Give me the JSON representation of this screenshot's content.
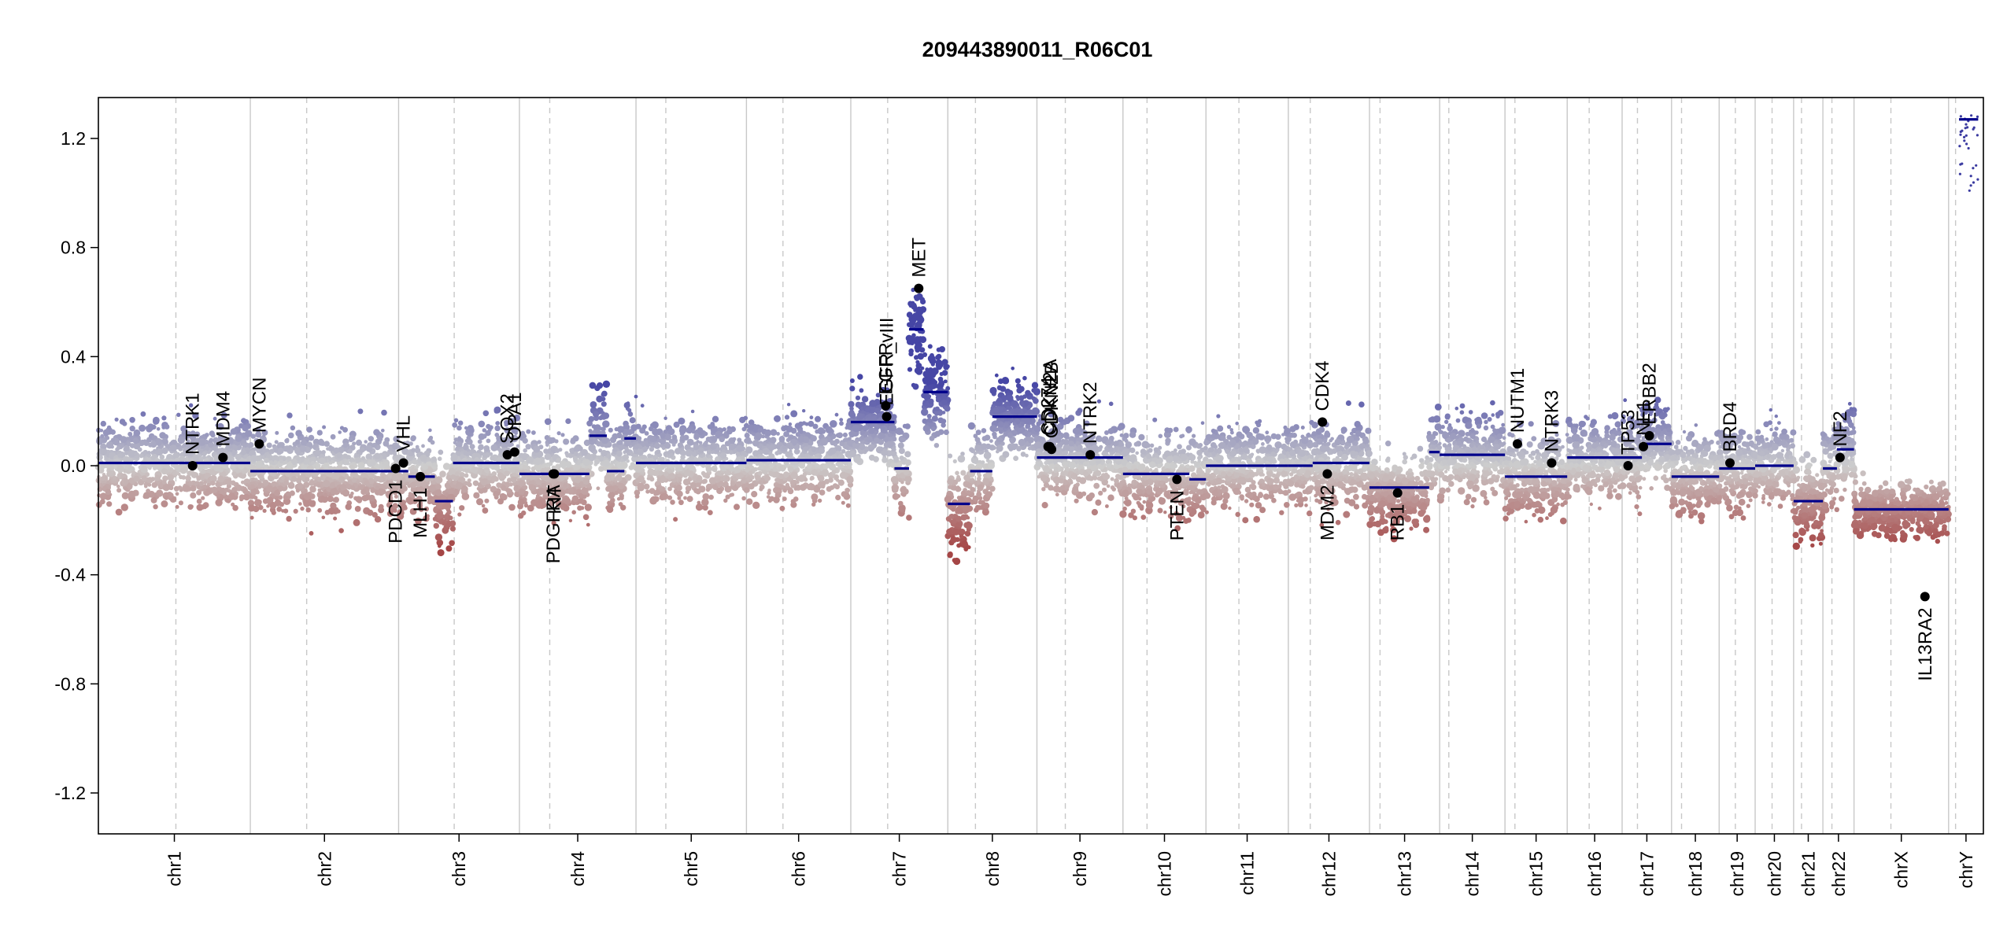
{
  "chart_data": {
    "type": "scatter",
    "title": "209443890011_R06C01",
    "xlabel": "",
    "ylabel": "",
    "ylim": [
      -1.35,
      1.35
    ],
    "yticks": [
      -1.2,
      -0.8,
      -0.4,
      0.0,
      0.4,
      0.8,
      1.2
    ],
    "ytick_labels": [
      "-1.2",
      "-0.8",
      "-0.4",
      "0.0",
      "0.4",
      "0.8",
      "1.2"
    ],
    "grid": false,
    "legend": "none",
    "colors": {
      "gain": "#3a3aa0",
      "loss": "#a03a3a",
      "neutral": "#bdbdbd",
      "segment": "#00008b",
      "gene": "#000000"
    },
    "chromosomes": [
      {
        "name": "chr1",
        "size": 249
      },
      {
        "name": "chr2",
        "size": 243
      },
      {
        "name": "chr3",
        "size": 198
      },
      {
        "name": "chr4",
        "size": 191
      },
      {
        "name": "chr5",
        "size": 181
      },
      {
        "name": "chr6",
        "size": 171
      },
      {
        "name": "chr7",
        "size": 159
      },
      {
        "name": "chr8",
        "size": 146
      },
      {
        "name": "chr9",
        "size": 141
      },
      {
        "name": "chr10",
        "size": 136
      },
      {
        "name": "chr11",
        "size": 135
      },
      {
        "name": "chr12",
        "size": 133
      },
      {
        "name": "chr13",
        "size": 115
      },
      {
        "name": "chr14",
        "size": 107
      },
      {
        "name": "chr15",
        "size": 102
      },
      {
        "name": "chr16",
        "size": 90
      },
      {
        "name": "chr17",
        "size": 81
      },
      {
        "name": "chr18",
        "size": 78
      },
      {
        "name": "chr19",
        "size": 59
      },
      {
        "name": "chr20",
        "size": 63
      },
      {
        "name": "chr21",
        "size": 48
      },
      {
        "name": "chr22",
        "size": 51
      },
      {
        "name": "chrX",
        "size": 155
      },
      {
        "name": "chrY",
        "size": 57
      }
    ],
    "centromeres": [
      0.51,
      0.38,
      0.46,
      0.26,
      0.27,
      0.35,
      0.38,
      0.31,
      0.33,
      0.29,
      0.4,
      0.27,
      0.15,
      0.14,
      0.16,
      0.4,
      0.31,
      0.21,
      0.45,
      0.44,
      0.27,
      0.29,
      0.39,
      0.2
    ],
    "segments": [
      {
        "chr": 0,
        "start": 0.0,
        "end": 1.0,
        "value": 0.01
      },
      {
        "chr": 1,
        "start": 0.0,
        "end": 1.0,
        "value": -0.02
      },
      {
        "chr": 2,
        "start": 0.0,
        "end": 0.08,
        "value": -0.02
      },
      {
        "chr": 2,
        "start": 0.08,
        "end": 0.3,
        "value": -0.04
      },
      {
        "chr": 2,
        "start": 0.3,
        "end": 0.45,
        "value": -0.13
      },
      {
        "chr": 2,
        "start": 0.45,
        "end": 1.0,
        "value": 0.01
      },
      {
        "chr": 3,
        "start": 0.0,
        "end": 0.6,
        "value": -0.03
      },
      {
        "chr": 3,
        "start": 0.6,
        "end": 0.75,
        "value": 0.11
      },
      {
        "chr": 3,
        "start": 0.75,
        "end": 0.9,
        "value": -0.02
      },
      {
        "chr": 3,
        "start": 0.9,
        "end": 1.0,
        "value": 0.1
      },
      {
        "chr": 4,
        "start": 0.0,
        "end": 1.0,
        "value": 0.01
      },
      {
        "chr": 5,
        "start": 0.0,
        "end": 1.0,
        "value": 0.02
      },
      {
        "chr": 6,
        "start": 0.0,
        "end": 0.45,
        "value": 0.16
      },
      {
        "chr": 6,
        "start": 0.45,
        "end": 0.6,
        "value": -0.01
      },
      {
        "chr": 6,
        "start": 0.6,
        "end": 0.75,
        "value": 0.5
      },
      {
        "chr": 6,
        "start": 0.75,
        "end": 1.0,
        "value": 0.27
      },
      {
        "chr": 7,
        "start": 0.0,
        "end": 0.25,
        "value": -0.14
      },
      {
        "chr": 7,
        "start": 0.25,
        "end": 0.5,
        "value": -0.02
      },
      {
        "chr": 7,
        "start": 0.5,
        "end": 1.0,
        "value": 0.18
      },
      {
        "chr": 8,
        "start": 0.0,
        "end": 1.0,
        "value": 0.03
      },
      {
        "chr": 9,
        "start": 0.0,
        "end": 0.8,
        "value": -0.03
      },
      {
        "chr": 9,
        "start": 0.8,
        "end": 1.0,
        "value": -0.05
      },
      {
        "chr": 10,
        "start": 0.0,
        "end": 1.0,
        "value": 0.0
      },
      {
        "chr": 11,
        "start": 0.0,
        "end": 0.3,
        "value": 0.0
      },
      {
        "chr": 11,
        "start": 0.3,
        "end": 1.0,
        "value": 0.01
      },
      {
        "chr": 12,
        "start": 0.0,
        "end": 0.15,
        "value": -0.08
      },
      {
        "chr": 12,
        "start": 0.15,
        "end": 0.85,
        "value": -0.08
      },
      {
        "chr": 12,
        "start": 0.85,
        "end": 1.0,
        "value": 0.05
      },
      {
        "chr": 13,
        "start": 0.0,
        "end": 1.0,
        "value": 0.04
      },
      {
        "chr": 14,
        "start": 0.0,
        "end": 1.0,
        "value": -0.04
      },
      {
        "chr": 15,
        "start": 0.0,
        "end": 1.0,
        "value": 0.03
      },
      {
        "chr": 16,
        "start": 0.0,
        "end": 0.4,
        "value": 0.03
      },
      {
        "chr": 16,
        "start": 0.4,
        "end": 1.0,
        "value": 0.08
      },
      {
        "chr": 17,
        "start": 0.0,
        "end": 1.0,
        "value": -0.04
      },
      {
        "chr": 18,
        "start": 0.0,
        "end": 1.0,
        "value": -0.01
      },
      {
        "chr": 19,
        "start": 0.0,
        "end": 1.0,
        "value": 0.0
      },
      {
        "chr": 20,
        "start": 0.0,
        "end": 1.0,
        "value": -0.13
      },
      {
        "chr": 21,
        "start": 0.0,
        "end": 0.45,
        "value": -0.01
      },
      {
        "chr": 21,
        "start": 0.45,
        "end": 1.0,
        "value": 0.06
      },
      {
        "chr": 22,
        "start": 0.0,
        "end": 1.0,
        "value": -0.16
      },
      {
        "chr": 23,
        "start": 0.3,
        "end": 0.85,
        "value": 1.27
      }
    ],
    "genes": [
      {
        "name": "NTRK1",
        "chr": 0,
        "pos": 0.62,
        "value": 0.0
      },
      {
        "name": "MDM4",
        "chr": 0,
        "pos": 0.82,
        "value": 0.03
      },
      {
        "name": "MYCN",
        "chr": 1,
        "pos": 0.06,
        "value": 0.08
      },
      {
        "name": "PDCD1",
        "chr": 1,
        "pos": 0.98,
        "value": -0.01
      },
      {
        "name": "VHL",
        "chr": 2,
        "pos": 0.04,
        "value": 0.01
      },
      {
        "name": "MLH1",
        "chr": 2,
        "pos": 0.18,
        "value": -0.04
      },
      {
        "name": "SOX2",
        "chr": 2,
        "pos": 0.9,
        "value": 0.04
      },
      {
        "name": "OPA1",
        "chr": 2,
        "pos": 0.96,
        "value": 0.05
      },
      {
        "name": "PDGFRA",
        "chr": 3,
        "pos": 0.29,
        "value": -0.03
      },
      {
        "name": "KIT",
        "chr": 3,
        "pos": 0.3,
        "value": -0.03
      },
      {
        "name": "EGFR",
        "chr": 6,
        "pos": 0.36,
        "value": 0.22
      },
      {
        "name": "EGFR_vIII",
        "chr": 6,
        "pos": 0.37,
        "value": 0.18
      },
      {
        "name": "MET",
        "chr": 6,
        "pos": 0.7,
        "value": 0.65
      },
      {
        "name": "CDKN2A",
        "chr": 8,
        "pos": 0.15,
        "value": 0.07
      },
      {
        "name": "CDKN2B",
        "chr": 8,
        "pos": 0.17,
        "value": 0.06
      },
      {
        "name": "CD274",
        "chr": 8,
        "pos": 0.13,
        "value": 0.07
      },
      {
        "name": "NTRK2",
        "chr": 8,
        "pos": 0.62,
        "value": 0.04
      },
      {
        "name": "PTEN",
        "chr": 9,
        "pos": 0.65,
        "value": -0.05
      },
      {
        "name": "CDK4",
        "chr": 11,
        "pos": 0.42,
        "value": 0.16
      },
      {
        "name": "MDM2",
        "chr": 11,
        "pos": 0.48,
        "value": -0.03
      },
      {
        "name": "RB1",
        "chr": 12,
        "pos": 0.4,
        "value": -0.1
      },
      {
        "name": "NUTM1",
        "chr": 14,
        "pos": 0.2,
        "value": 0.08
      },
      {
        "name": "NTRK3",
        "chr": 14,
        "pos": 0.75,
        "value": 0.01
      },
      {
        "name": "TP53",
        "chr": 16,
        "pos": 0.12,
        "value": 0.0
      },
      {
        "name": "NF1",
        "chr": 16,
        "pos": 0.43,
        "value": 0.07
      },
      {
        "name": "ERBB2",
        "chr": 16,
        "pos": 0.55,
        "value": 0.11
      },
      {
        "name": "BRD4",
        "chr": 18,
        "pos": 0.3,
        "value": 0.01
      },
      {
        "name": "NF2",
        "chr": 21,
        "pos": 0.55,
        "value": 0.03
      },
      {
        "name": "IL13RA2",
        "chr": 22,
        "pos": 0.75,
        "value": -0.48
      }
    ],
    "profile_regions": [
      {
        "chr": 6,
        "start": 0.0,
        "end": 0.45,
        "mean": 0.15,
        "spread": 0.08
      },
      {
        "chr": 6,
        "start": 0.6,
        "end": 0.75,
        "mean": 0.5,
        "spread": 0.12
      },
      {
        "chr": 6,
        "start": 0.75,
        "end": 1.0,
        "mean": 0.27,
        "spread": 0.1
      },
      {
        "chr": 7,
        "start": 0.0,
        "end": 0.25,
        "mean": -0.16,
        "spread": 0.1
      },
      {
        "chr": 7,
        "start": 0.5,
        "end": 1.0,
        "mean": 0.18,
        "spread": 0.08
      },
      {
        "chr": 22,
        "start": 0.0,
        "end": 1.0,
        "mean": -0.16,
        "spread": 0.06
      },
      {
        "chr": 12,
        "start": 0.1,
        "end": 0.85,
        "mean": -0.1,
        "spread": 0.08
      },
      {
        "chr": 3,
        "start": 0.6,
        "end": 0.75,
        "mean": 0.12,
        "spread": 0.12
      }
    ]
  }
}
